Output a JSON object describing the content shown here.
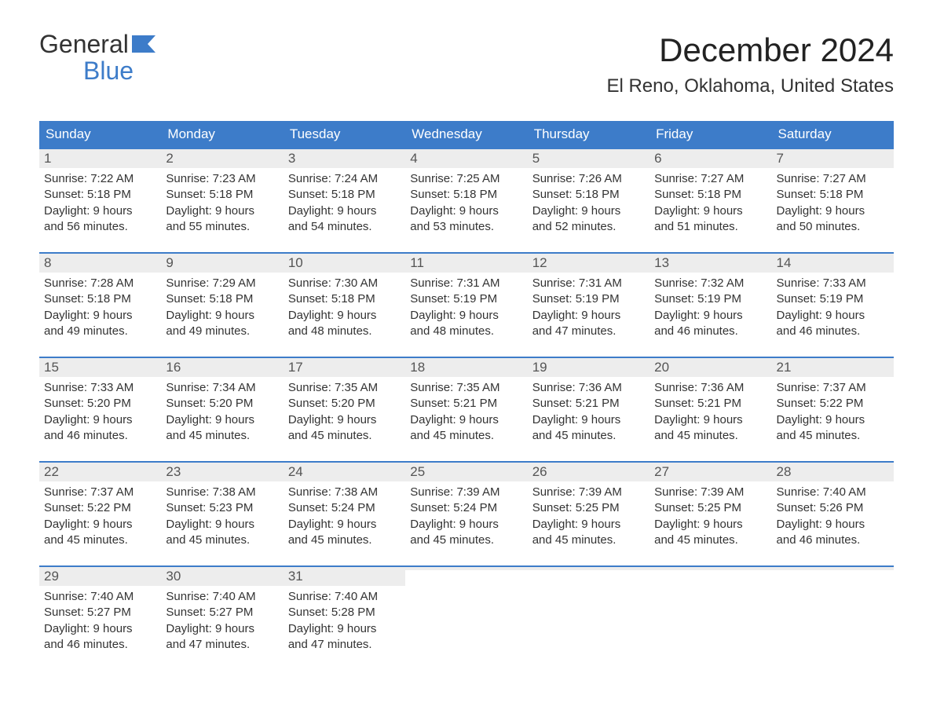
{
  "logo": {
    "top": "General",
    "bottom": "Blue"
  },
  "title": "December 2024",
  "location": "El Reno, Oklahoma, United States",
  "colors": {
    "header_bg": "#3d7cc9",
    "header_text": "#ffffff",
    "daynum_bg": "#ededed",
    "border": "#3d7cc9",
    "body_text": "#333333",
    "logo_blue": "#3d7cc9"
  },
  "weekdays": [
    "Sunday",
    "Monday",
    "Tuesday",
    "Wednesday",
    "Thursday",
    "Friday",
    "Saturday"
  ],
  "weeks": [
    [
      {
        "n": "1",
        "sr": "Sunrise: 7:22 AM",
        "ss": "Sunset: 5:18 PM",
        "d1": "Daylight: 9 hours",
        "d2": "and 56 minutes."
      },
      {
        "n": "2",
        "sr": "Sunrise: 7:23 AM",
        "ss": "Sunset: 5:18 PM",
        "d1": "Daylight: 9 hours",
        "d2": "and 55 minutes."
      },
      {
        "n": "3",
        "sr": "Sunrise: 7:24 AM",
        "ss": "Sunset: 5:18 PM",
        "d1": "Daylight: 9 hours",
        "d2": "and 54 minutes."
      },
      {
        "n": "4",
        "sr": "Sunrise: 7:25 AM",
        "ss": "Sunset: 5:18 PM",
        "d1": "Daylight: 9 hours",
        "d2": "and 53 minutes."
      },
      {
        "n": "5",
        "sr": "Sunrise: 7:26 AM",
        "ss": "Sunset: 5:18 PM",
        "d1": "Daylight: 9 hours",
        "d2": "and 52 minutes."
      },
      {
        "n": "6",
        "sr": "Sunrise: 7:27 AM",
        "ss": "Sunset: 5:18 PM",
        "d1": "Daylight: 9 hours",
        "d2": "and 51 minutes."
      },
      {
        "n": "7",
        "sr": "Sunrise: 7:27 AM",
        "ss": "Sunset: 5:18 PM",
        "d1": "Daylight: 9 hours",
        "d2": "and 50 minutes."
      }
    ],
    [
      {
        "n": "8",
        "sr": "Sunrise: 7:28 AM",
        "ss": "Sunset: 5:18 PM",
        "d1": "Daylight: 9 hours",
        "d2": "and 49 minutes."
      },
      {
        "n": "9",
        "sr": "Sunrise: 7:29 AM",
        "ss": "Sunset: 5:18 PM",
        "d1": "Daylight: 9 hours",
        "d2": "and 49 minutes."
      },
      {
        "n": "10",
        "sr": "Sunrise: 7:30 AM",
        "ss": "Sunset: 5:18 PM",
        "d1": "Daylight: 9 hours",
        "d2": "and 48 minutes."
      },
      {
        "n": "11",
        "sr": "Sunrise: 7:31 AM",
        "ss": "Sunset: 5:19 PM",
        "d1": "Daylight: 9 hours",
        "d2": "and 48 minutes."
      },
      {
        "n": "12",
        "sr": "Sunrise: 7:31 AM",
        "ss": "Sunset: 5:19 PM",
        "d1": "Daylight: 9 hours",
        "d2": "and 47 minutes."
      },
      {
        "n": "13",
        "sr": "Sunrise: 7:32 AM",
        "ss": "Sunset: 5:19 PM",
        "d1": "Daylight: 9 hours",
        "d2": "and 46 minutes."
      },
      {
        "n": "14",
        "sr": "Sunrise: 7:33 AM",
        "ss": "Sunset: 5:19 PM",
        "d1": "Daylight: 9 hours",
        "d2": "and 46 minutes."
      }
    ],
    [
      {
        "n": "15",
        "sr": "Sunrise: 7:33 AM",
        "ss": "Sunset: 5:20 PM",
        "d1": "Daylight: 9 hours",
        "d2": "and 46 minutes."
      },
      {
        "n": "16",
        "sr": "Sunrise: 7:34 AM",
        "ss": "Sunset: 5:20 PM",
        "d1": "Daylight: 9 hours",
        "d2": "and 45 minutes."
      },
      {
        "n": "17",
        "sr": "Sunrise: 7:35 AM",
        "ss": "Sunset: 5:20 PM",
        "d1": "Daylight: 9 hours",
        "d2": "and 45 minutes."
      },
      {
        "n": "18",
        "sr": "Sunrise: 7:35 AM",
        "ss": "Sunset: 5:21 PM",
        "d1": "Daylight: 9 hours",
        "d2": "and 45 minutes."
      },
      {
        "n": "19",
        "sr": "Sunrise: 7:36 AM",
        "ss": "Sunset: 5:21 PM",
        "d1": "Daylight: 9 hours",
        "d2": "and 45 minutes."
      },
      {
        "n": "20",
        "sr": "Sunrise: 7:36 AM",
        "ss": "Sunset: 5:21 PM",
        "d1": "Daylight: 9 hours",
        "d2": "and 45 minutes."
      },
      {
        "n": "21",
        "sr": "Sunrise: 7:37 AM",
        "ss": "Sunset: 5:22 PM",
        "d1": "Daylight: 9 hours",
        "d2": "and 45 minutes."
      }
    ],
    [
      {
        "n": "22",
        "sr": "Sunrise: 7:37 AM",
        "ss": "Sunset: 5:22 PM",
        "d1": "Daylight: 9 hours",
        "d2": "and 45 minutes."
      },
      {
        "n": "23",
        "sr": "Sunrise: 7:38 AM",
        "ss": "Sunset: 5:23 PM",
        "d1": "Daylight: 9 hours",
        "d2": "and 45 minutes."
      },
      {
        "n": "24",
        "sr": "Sunrise: 7:38 AM",
        "ss": "Sunset: 5:24 PM",
        "d1": "Daylight: 9 hours",
        "d2": "and 45 minutes."
      },
      {
        "n": "25",
        "sr": "Sunrise: 7:39 AM",
        "ss": "Sunset: 5:24 PM",
        "d1": "Daylight: 9 hours",
        "d2": "and 45 minutes."
      },
      {
        "n": "26",
        "sr": "Sunrise: 7:39 AM",
        "ss": "Sunset: 5:25 PM",
        "d1": "Daylight: 9 hours",
        "d2": "and 45 minutes."
      },
      {
        "n": "27",
        "sr": "Sunrise: 7:39 AM",
        "ss": "Sunset: 5:25 PM",
        "d1": "Daylight: 9 hours",
        "d2": "and 45 minutes."
      },
      {
        "n": "28",
        "sr": "Sunrise: 7:40 AM",
        "ss": "Sunset: 5:26 PM",
        "d1": "Daylight: 9 hours",
        "d2": "and 46 minutes."
      }
    ],
    [
      {
        "n": "29",
        "sr": "Sunrise: 7:40 AM",
        "ss": "Sunset: 5:27 PM",
        "d1": "Daylight: 9 hours",
        "d2": "and 46 minutes."
      },
      {
        "n": "30",
        "sr": "Sunrise: 7:40 AM",
        "ss": "Sunset: 5:27 PM",
        "d1": "Daylight: 9 hours",
        "d2": "and 47 minutes."
      },
      {
        "n": "31",
        "sr": "Sunrise: 7:40 AM",
        "ss": "Sunset: 5:28 PM",
        "d1": "Daylight: 9 hours",
        "d2": "and 47 minutes."
      },
      {
        "empty": true
      },
      {
        "empty": true
      },
      {
        "empty": true
      },
      {
        "empty": true
      }
    ]
  ]
}
